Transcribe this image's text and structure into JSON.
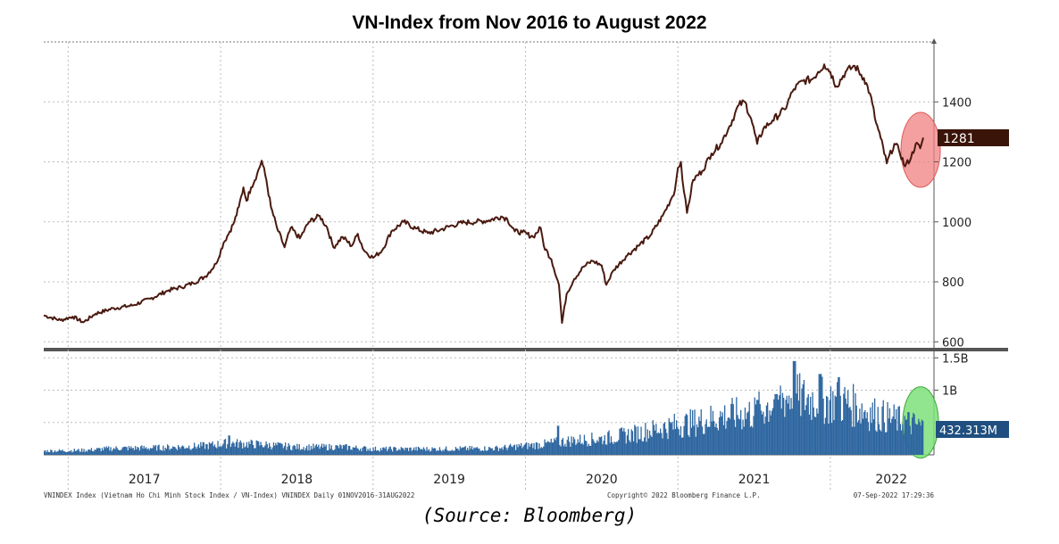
{
  "chart_data": [
    {
      "type": "line",
      "title": "VN-Index from Nov 2016 to August 2022",
      "series": [
        {
          "name": "VN-Index",
          "color": "#4a1a10",
          "points": [
            [
              2016.84,
              688
            ],
            [
              2016.95,
              672
            ],
            [
              2017.03,
              684
            ],
            [
              2017.1,
              665
            ],
            [
              2017.18,
              694
            ],
            [
              2017.3,
              712
            ],
            [
              2017.42,
              721
            ],
            [
              2017.54,
              744
            ],
            [
              2017.66,
              772
            ],
            [
              2017.74,
              782
            ],
            [
              2017.82,
              796
            ],
            [
              2017.9,
              818
            ],
            [
              2017.97,
              860
            ],
            [
              2018.02,
              930
            ],
            [
              2018.06,
              968
            ],
            [
              2018.09,
              1000
            ],
            [
              2018.12,
              1050
            ],
            [
              2018.15,
              1115
            ],
            [
              2018.17,
              1070
            ],
            [
              2018.2,
              1115
            ],
            [
              2018.24,
              1160
            ],
            [
              2018.27,
              1204
            ],
            [
              2018.3,
              1140
            ],
            [
              2018.33,
              1050
            ],
            [
              2018.37,
              980
            ],
            [
              2018.42,
              915
            ],
            [
              2018.46,
              980
            ],
            [
              2018.52,
              945
            ],
            [
              2018.58,
              1000
            ],
            [
              2018.65,
              1020
            ],
            [
              2018.7,
              980
            ],
            [
              2018.74,
              915
            ],
            [
              2018.8,
              950
            ],
            [
              2018.86,
              920
            ],
            [
              2018.9,
              960
            ],
            [
              2018.94,
              905
            ],
            [
              2019.0,
              880
            ],
            [
              2019.06,
              905
            ],
            [
              2019.12,
              968
            ],
            [
              2019.2,
              1000
            ],
            [
              2019.28,
              978
            ],
            [
              2019.36,
              962
            ],
            [
              2019.44,
              973
            ],
            [
              2019.52,
              988
            ],
            [
              2019.6,
              998
            ],
            [
              2019.68,
              1000
            ],
            [
              2019.76,
              1005
            ],
            [
              2019.84,
              1018
            ],
            [
              2019.88,
              1010
            ],
            [
              2019.93,
              968
            ],
            [
              2019.98,
              965
            ],
            [
              2020.05,
              950
            ],
            [
              2020.1,
              980
            ],
            [
              2020.12,
              920
            ],
            [
              2020.17,
              875
            ],
            [
              2020.22,
              790
            ],
            [
              2020.24,
              663
            ],
            [
              2020.27,
              760
            ],
            [
              2020.32,
              810
            ],
            [
              2020.38,
              850
            ],
            [
              2020.44,
              870
            ],
            [
              2020.5,
              855
            ],
            [
              2020.53,
              790
            ],
            [
              2020.58,
              840
            ],
            [
              2020.66,
              885
            ],
            [
              2020.74,
              920
            ],
            [
              2020.82,
              955
            ],
            [
              2020.9,
              1020
            ],
            [
              2020.95,
              1070
            ],
            [
              2020.98,
              1105
            ],
            [
              2021.0,
              1180
            ],
            [
              2021.02,
              1200
            ],
            [
              2021.04,
              1100
            ],
            [
              2021.06,
              1030
            ],
            [
              2021.1,
              1140
            ],
            [
              2021.16,
              1170
            ],
            [
              2021.22,
              1228
            ],
            [
              2021.28,
              1260
            ],
            [
              2021.34,
              1320
            ],
            [
              2021.4,
              1390
            ],
            [
              2021.44,
              1400
            ],
            [
              2021.48,
              1345
            ],
            [
              2021.52,
              1260
            ],
            [
              2021.56,
              1310
            ],
            [
              2021.62,
              1338
            ],
            [
              2021.7,
              1375
            ],
            [
              2021.76,
              1442
            ],
            [
              2021.82,
              1470
            ],
            [
              2021.88,
              1475
            ],
            [
              2021.92,
              1500
            ],
            [
              2021.96,
              1525
            ],
            [
              2022.0,
              1500
            ],
            [
              2022.04,
              1452
            ],
            [
              2022.1,
              1500
            ],
            [
              2022.16,
              1520
            ],
            [
              2022.22,
              1480
            ],
            [
              2022.26,
              1428
            ],
            [
              2022.3,
              1330
            ],
            [
              2022.33,
              1280
            ],
            [
              2022.37,
              1195
            ],
            [
              2022.42,
              1260
            ],
            [
              2022.45,
              1240
            ],
            [
              2022.49,
              1185
            ],
            [
              2022.53,
              1215
            ],
            [
              2022.56,
              1260
            ],
            [
              2022.59,
              1245
            ],
            [
              2022.61,
              1281
            ]
          ]
        }
      ],
      "ylim": [
        580,
        1600
      ],
      "yticks": [
        600,
        800,
        1000,
        1200,
        1400
      ],
      "last_value_label": "1281",
      "highlight_color": "#f08080"
    },
    {
      "type": "bar",
      "series_name": "Volume",
      "color": "#2f67a0",
      "volume_profile": [
        [
          2016.84,
          0.06
        ],
        [
          2017.1,
          0.07
        ],
        [
          2017.3,
          0.1
        ],
        [
          2017.6,
          0.11
        ],
        [
          2017.9,
          0.14
        ],
        [
          2018.05,
          0.18
        ],
        [
          2018.25,
          0.16
        ],
        [
          2018.5,
          0.12
        ],
        [
          2018.8,
          0.12
        ],
        [
          2019.0,
          0.09
        ],
        [
          2019.4,
          0.09
        ],
        [
          2019.8,
          0.1
        ],
        [
          2020.1,
          0.16
        ],
        [
          2020.3,
          0.22
        ],
        [
          2020.5,
          0.25
        ],
        [
          2020.7,
          0.32
        ],
        [
          2020.9,
          0.42
        ],
        [
          2021.1,
          0.5
        ],
        [
          2021.3,
          0.6
        ],
        [
          2021.5,
          0.65
        ],
        [
          2021.7,
          0.9
        ],
        [
          2021.9,
          0.85
        ],
        [
          2022.1,
          0.8
        ],
        [
          2022.3,
          0.62
        ],
        [
          2022.5,
          0.5
        ],
        [
          2022.61,
          0.43
        ]
      ],
      "spikes": [
        [
          2018.05,
          0.3
        ],
        [
          2020.21,
          0.45
        ],
        [
          2021.52,
          0.85
        ],
        [
          2021.64,
          0.94
        ],
        [
          2021.76,
          1.45
        ],
        [
          2021.93,
          1.25
        ],
        [
          2022.05,
          1.2
        ]
      ],
      "ylim": [
        0,
        1.6
      ],
      "ytick_labels": [
        "1.5B",
        "1B"
      ],
      "yticks": [
        1.5,
        1.0
      ],
      "last_value_label": "432.313M",
      "highlight_color": "#7ee07a"
    }
  ],
  "x_axis": {
    "year_labels": [
      "2017",
      "2018",
      "2019",
      "2020",
      "2021",
      "2022"
    ],
    "year_positions": [
      2017.5,
      2018.5,
      2019.5,
      2020.5,
      2021.5,
      2022.4
    ],
    "boundaries": [
      2017,
      2018,
      2019,
      2020,
      2021,
      2022
    ],
    "range": [
      2016.84,
      2022.68
    ]
  },
  "footer": {
    "left": "VNINDEX Index (Vietnam Ho Chi Minh Stock Index / VN-Index) VNINDEX  Daily 01NOV2016-31AUG2022",
    "center": "Copyright© 2022 Bloomberg Finance L.P.",
    "right": "07-Sep-2022 17:29:36"
  },
  "source_note": "(Source: Bloomberg)"
}
